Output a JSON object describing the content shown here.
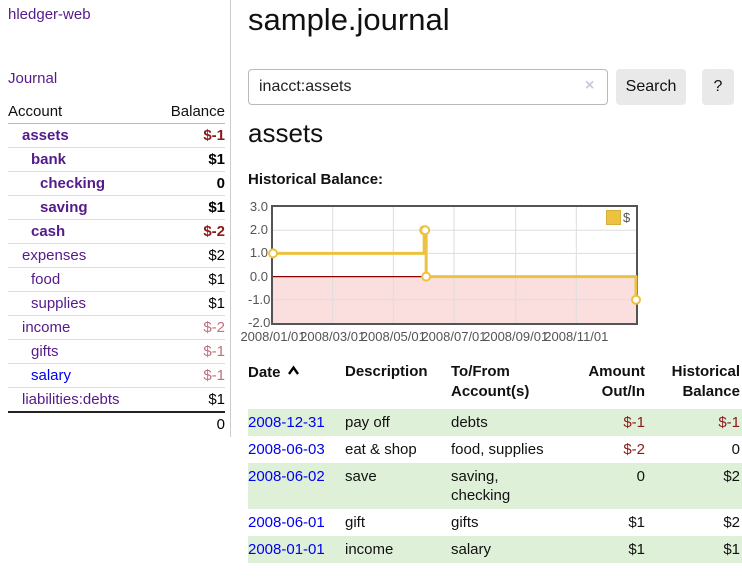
{
  "colors": {
    "link_purple": "#551a8b",
    "link_blue": "#0000ee",
    "neg_strong": "#8b1a1a",
    "neg_soft": "#c0707d",
    "row_green": "#dff0d8",
    "series_yellow": "#edc240",
    "zero_line": "#8b0000",
    "neg_region": "#fbdfdf",
    "grid": "#dddddd",
    "chart_border": "#545454"
  },
  "sidebar": {
    "brand": "hledger-web",
    "nav_journal": "Journal",
    "table": {
      "col_account": "Account",
      "col_balance": "Balance",
      "rows": [
        {
          "name": "assets",
          "balance": "$-1",
          "indent": 1,
          "strong": true,
          "neg": true,
          "link_blue": false
        },
        {
          "name": "bank",
          "balance": "$1",
          "indent": 2,
          "strong": true,
          "neg": false,
          "link_blue": false
        },
        {
          "name": "checking",
          "balance": "0",
          "indent": 3,
          "strong": true,
          "neg": false,
          "link_blue": false
        },
        {
          "name": "saving",
          "balance": "$1",
          "indent": 3,
          "strong": true,
          "neg": false,
          "link_blue": false
        },
        {
          "name": "cash",
          "balance": "$-2",
          "indent": 2,
          "strong": true,
          "neg": true,
          "link_blue": false
        },
        {
          "name": "expenses",
          "balance": "$2",
          "indent": 1,
          "strong": false,
          "neg": false,
          "link_blue": false
        },
        {
          "name": "food",
          "balance": "$1",
          "indent": 2,
          "strong": false,
          "neg": false,
          "link_blue": false
        },
        {
          "name": "supplies",
          "balance": "$1",
          "indent": 2,
          "strong": false,
          "neg": false,
          "link_blue": false
        },
        {
          "name": "income",
          "balance": "$-2",
          "indent": 1,
          "strong": false,
          "neg": true,
          "link_blue": false
        },
        {
          "name": "gifts",
          "balance": "$-1",
          "indent": 2,
          "strong": false,
          "neg": true,
          "link_blue": false
        },
        {
          "name": "salary",
          "balance": "$-1",
          "indent": 2,
          "strong": false,
          "neg": true,
          "link_blue": true
        },
        {
          "name": "liabilities:debts",
          "balance": "$1",
          "indent": 1,
          "strong": false,
          "neg": false,
          "link_blue": false
        }
      ],
      "total": "0"
    }
  },
  "main": {
    "title": "sample.journal",
    "search": {
      "value": "inacct:assets",
      "clear_label": "×",
      "search_button": "Search",
      "help_button": "?"
    },
    "account_heading": "assets",
    "chart_title": "Historical Balance:",
    "register": {
      "headers": {
        "date": "Date",
        "description": "Description",
        "accounts": "To/From Account(s)",
        "amount": "Amount Out/In",
        "balance": "Historical Balance"
      },
      "rows": [
        {
          "date": "2008-12-31",
          "description": "pay off",
          "accounts": "debts",
          "amount": "$-1",
          "amount_neg": true,
          "balance": "$-1",
          "balance_neg": true,
          "shaded": true
        },
        {
          "date": "2008-06-03",
          "description": "eat & shop",
          "accounts": "food, supplies",
          "amount": "$-2",
          "amount_neg": true,
          "balance": "0",
          "balance_neg": false,
          "shaded": false
        },
        {
          "date": "2008-06-02",
          "description": "save",
          "accounts": "saving, checking",
          "amount": "0",
          "amount_neg": false,
          "balance": "$2",
          "balance_neg": false,
          "shaded": true
        },
        {
          "date": "2008-06-01",
          "description": "gift",
          "accounts": "gifts",
          "amount": "$1",
          "amount_neg": false,
          "balance": "$2",
          "balance_neg": false,
          "shaded": false
        },
        {
          "date": "2008-01-01",
          "description": "income",
          "accounts": "salary",
          "amount": "$1",
          "amount_neg": false,
          "balance": "$1",
          "balance_neg": false,
          "shaded": true
        }
      ]
    }
  },
  "chart_data": {
    "type": "line",
    "step": true,
    "title": "Historical Balance:",
    "series": [
      {
        "name": "$",
        "color": "#edc240",
        "points": [
          [
            "2008-01-01",
            1
          ],
          [
            "2008-06-01",
            2
          ],
          [
            "2008-06-02",
            2
          ],
          [
            "2008-06-03",
            0
          ],
          [
            "2008-12-31",
            -1
          ]
        ]
      }
    ],
    "x_range": [
      "2008-01-01",
      "2008-12-31"
    ],
    "x_ticks": [
      "2008/01/01",
      "2008/03/01",
      "2008/05/01",
      "2008/07/01",
      "2008/09/01",
      "2008/11/01"
    ],
    "y_ticks": [
      "3.0",
      "2.0",
      "1.0",
      "0.0",
      "-1.0",
      "-2.0"
    ],
    "ylim": [
      -2,
      3
    ],
    "legend_position": "top-right",
    "legend_label": "$",
    "grid": true,
    "negative_region_shaded": true,
    "zero_line_color": "#8b0000"
  }
}
